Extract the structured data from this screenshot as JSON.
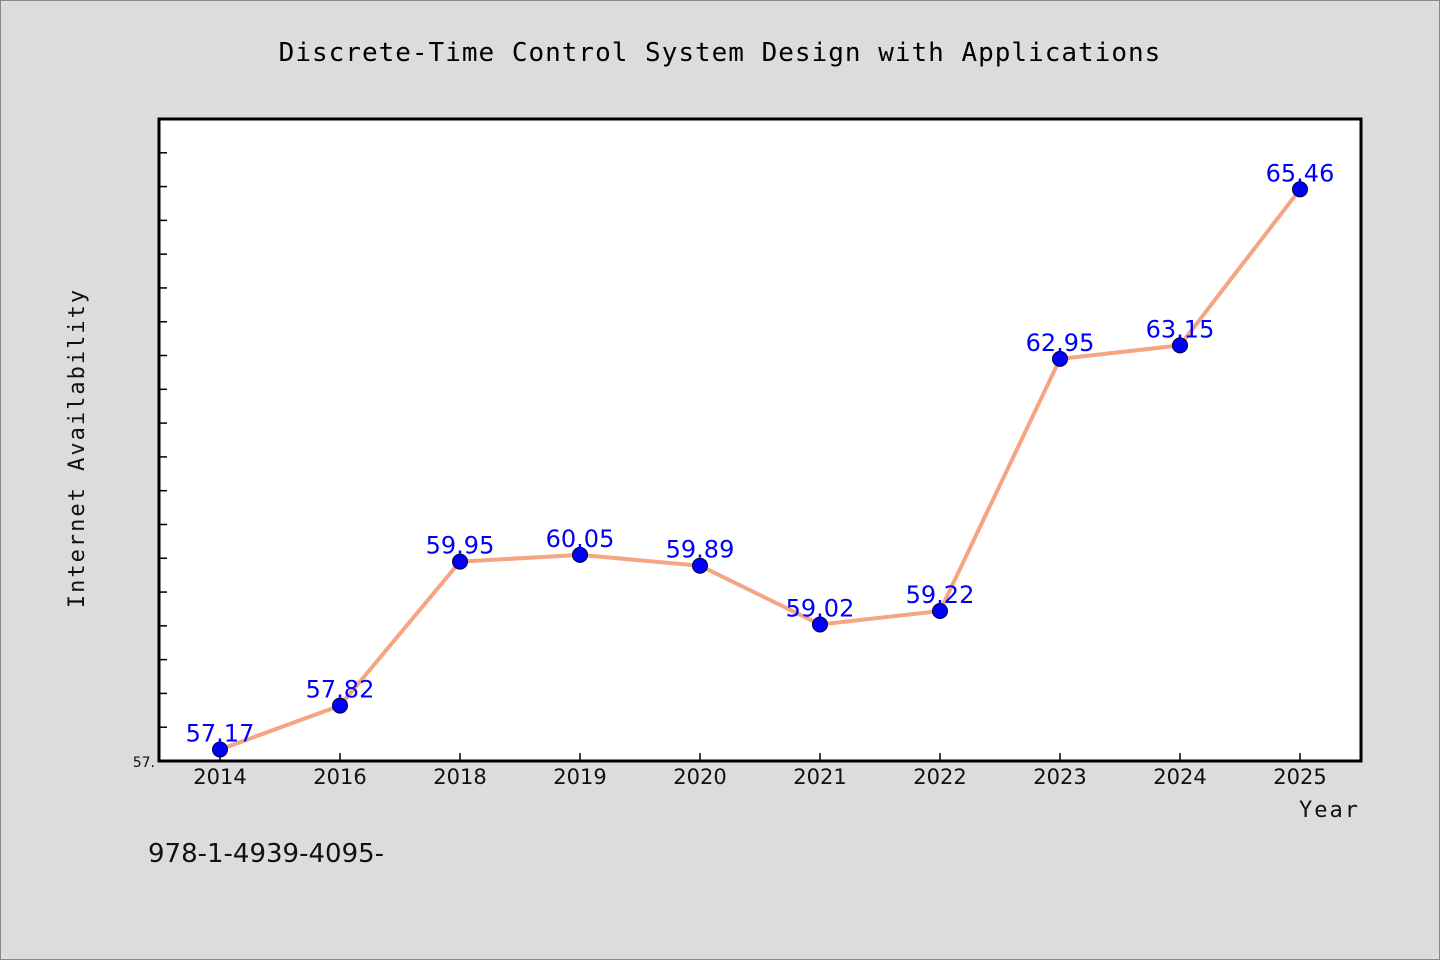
{
  "chart_data": {
    "type": "line",
    "title": "Discrete-Time Control System Design with Applications",
    "xlabel": "Year",
    "ylabel": "Internet Availability",
    "categories": [
      "2014",
      "2016",
      "2018",
      "2019",
      "2020",
      "2021",
      "2022",
      "2023",
      "2024",
      "2025"
    ],
    "series": [
      {
        "values": [
          57.17,
          57.82,
          59.95,
          60.05,
          59.89,
          59.02,
          59.22,
          62.95,
          63.15,
          65.46
        ],
        "labels": [
          "57.17",
          "57.82",
          "59.95",
          "60.05",
          "59.89",
          "59.02",
          "59.22",
          "62.95",
          "63.15",
          "65.46"
        ]
      }
    ],
    "ytick_label": "57.",
    "ylim": [
      57.0,
      66.5
    ],
    "grid": false,
    "line_color": "#f4a582",
    "marker_color": "#0000ff"
  },
  "footer": "978-1-4939-4095-"
}
